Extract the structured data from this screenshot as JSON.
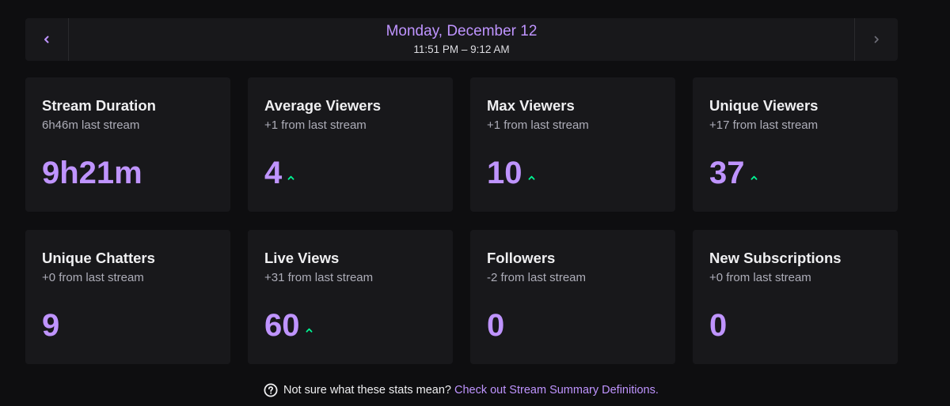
{
  "date_nav": {
    "date": "Monday, December 12",
    "time_range": "11:51 PM – 9:12 AM"
  },
  "cards": [
    {
      "title": "Stream Duration",
      "subtitle": "6h46m last stream",
      "value": "9h21m",
      "trend": "none"
    },
    {
      "title": "Average Viewers",
      "subtitle": "+1 from last stream",
      "value": "4",
      "trend": "up"
    },
    {
      "title": "Max Viewers",
      "subtitle": "+1 from last stream",
      "value": "10",
      "trend": "up"
    },
    {
      "title": "Unique Viewers",
      "subtitle": "+17 from last stream",
      "value": "37",
      "trend": "up"
    },
    {
      "title": "Unique Chatters",
      "subtitle": "+0 from last stream",
      "value": "9",
      "trend": "none"
    },
    {
      "title": "Live Views",
      "subtitle": "+31 from last stream",
      "value": "60",
      "trend": "up"
    },
    {
      "title": "Followers",
      "subtitle": "-2 from last stream",
      "value": "0",
      "trend": "none"
    },
    {
      "title": "New Subscriptions",
      "subtitle": "+0 from last stream",
      "value": "0",
      "trend": "none"
    }
  ],
  "footer": {
    "question": "Not sure what these stats mean?",
    "link": "Check out Stream Summary Definitions."
  },
  "colors": {
    "accent": "#bf94ff",
    "trend_up": "#00f593",
    "background": "#0e0e10",
    "card": "#18181b"
  },
  "icons": {
    "prev": "chevron-left-icon",
    "next": "chevron-right-icon",
    "trend": "trend-up-icon",
    "help": "question-circle-icon"
  }
}
